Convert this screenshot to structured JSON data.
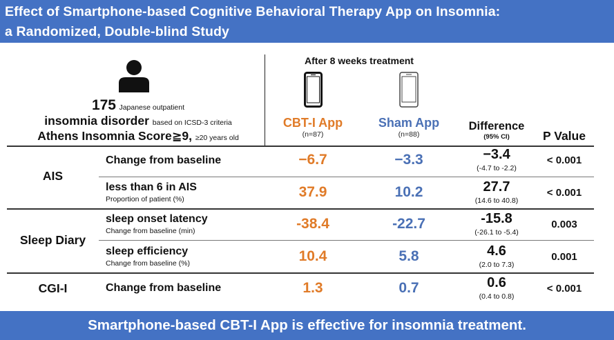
{
  "header": {
    "title_line1": "Effect of Smartphone-based Cognitive Behavioral Therapy App on Insomnia:",
    "title_line2": "a Randomized, Double-blind Study"
  },
  "participants": {
    "count": "175",
    "count_note": "Japanese outpatient",
    "condition": "insomnia disorder",
    "condition_note": "based on ICSD-3 criteria",
    "criterion": "Athens Insomnia Score≧9,",
    "criterion_note": "≥20 years old",
    "icon": "person-icon"
  },
  "columns": {
    "period": "After 8 weeks treatment",
    "cbt": {
      "name": "CBT-I App",
      "n": "(n=87)",
      "icon": "smartphone-icon",
      "color": "#e07b28"
    },
    "sham": {
      "name": "Sham App",
      "n": "(n=88)",
      "icon": "smartphone-outline-icon",
      "color": "#4a70b5"
    },
    "difference": "Difference",
    "difference_sub": "(95% CI)",
    "pvalue": "P Value"
  },
  "groups": [
    {
      "label": "AIS"
    },
    {
      "label": "Sleep Diary"
    },
    {
      "label": "CGI-I"
    }
  ],
  "rows": [
    {
      "title": "Change from baseline",
      "sub": "",
      "cbt": "−6.7",
      "sham": "−3.3",
      "diff": "−3.4",
      "ci": "(-4.7 to -2.2)",
      "p": "< 0.001"
    },
    {
      "title": "less than 6 in AIS",
      "sub": "Proportion of patient (%)",
      "cbt": "37.9",
      "sham": "10.2",
      "diff": "27.7",
      "ci": "(14.6 to 40.8)",
      "p": "< 0.001"
    },
    {
      "title": "sleep onset latency",
      "sub": "Change from baseline  (min)",
      "cbt": "-38.4",
      "sham": "-22.7",
      "diff": "-15.8",
      "ci": "(-26.1 to -5.4)",
      "p": "0.003"
    },
    {
      "title": "sleep efficiency",
      "sub": "Change from baseline (%)",
      "cbt": "10.4",
      "sham": "5.8",
      "diff": "4.6",
      "ci": "(2.0 to 7.3)",
      "p": "0.001"
    },
    {
      "title": "Change from baseline",
      "sub": "",
      "cbt": "1.3",
      "sham": "0.7",
      "diff": "0.6",
      "ci": "(0.4 to 0.8)",
      "p": "< 0.001"
    }
  ],
  "footer": {
    "conclusion": "Smartphone-based CBT-I App is effective for insomnia treatment."
  }
}
